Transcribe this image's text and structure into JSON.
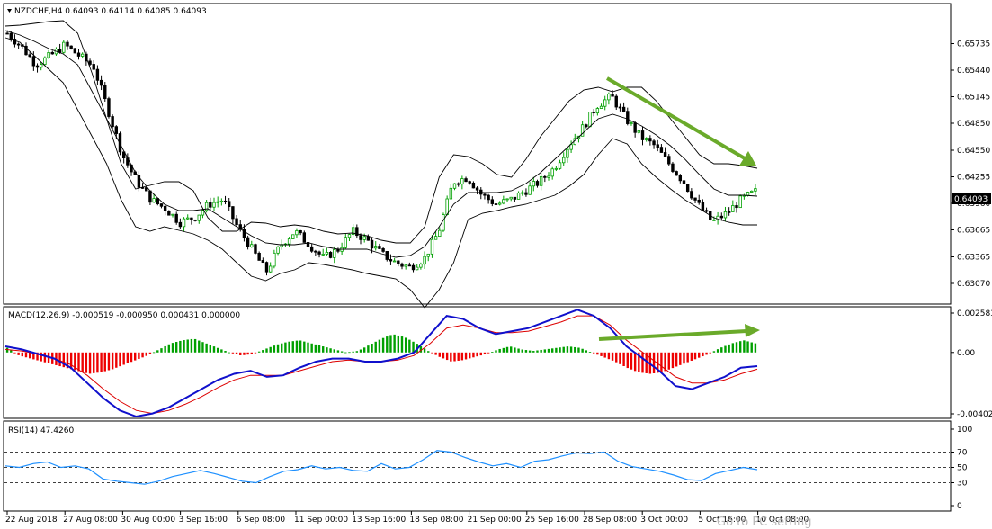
{
  "chart_data": [
    {
      "panel": "price",
      "type": "candlestick",
      "title": "NZDCHF,H4  0.64093 0.64114 0.64085 0.64093",
      "last_price_label": "0.64093",
      "ylim": [
        0.63,
        0.66
      ],
      "y_ticks": [
        "0.65735",
        "0.65440",
        "0.65145",
        "0.64850",
        "0.64550",
        "0.64255",
        "0.63960",
        "0.63665",
        "0.63365",
        "0.63070"
      ],
      "x_ticks": [
        "22 Aug 2018",
        "27 Aug 08:00",
        "30 Aug 00:00",
        "3 Sep 16:00",
        "6 Sep 08:00",
        "11 Sep 00:00",
        "13 Sep 16:00",
        "18 Sep 08:00",
        "21 Sep 00:00",
        "25 Sep 16:00",
        "28 Sep 08:00",
        "3 Oct 00:00",
        "5 Oct 16:00",
        "10 Oct 08:00"
      ],
      "close_path": [
        0.6585,
        0.657,
        0.655,
        0.656,
        0.6572,
        0.656,
        0.6548,
        0.65,
        0.645,
        0.642,
        0.64,
        0.639,
        0.6375,
        0.638,
        0.6395,
        0.64,
        0.637,
        0.6345,
        0.632,
        0.635,
        0.6365,
        0.635,
        0.6335,
        0.6345,
        0.6365,
        0.6355,
        0.634,
        0.633,
        0.6325,
        0.6335,
        0.6365,
        0.642,
        0.6425,
        0.6405,
        0.6395,
        0.64,
        0.641,
        0.642,
        0.6435,
        0.646,
        0.648,
        0.6505,
        0.6515,
        0.649,
        0.647,
        0.646,
        0.644,
        0.642,
        0.6395,
        0.6375,
        0.6385,
        0.64,
        0.6409
      ],
      "bb_upper": [
        0.6593,
        0.6594,
        0.6596,
        0.6598,
        0.6599,
        0.6585,
        0.654,
        0.649,
        0.644,
        0.6412,
        0.6416,
        0.642,
        0.642,
        0.641,
        0.638,
        0.6365,
        0.6365,
        0.6375,
        0.6374,
        0.637,
        0.6372,
        0.637,
        0.6365,
        0.6362,
        0.6363,
        0.636,
        0.6355,
        0.6352,
        0.6352,
        0.637,
        0.6425,
        0.645,
        0.6448,
        0.644,
        0.6428,
        0.6425,
        0.6445,
        0.647,
        0.649,
        0.651,
        0.6522,
        0.6525,
        0.652,
        0.6525,
        0.6525,
        0.651,
        0.649,
        0.647,
        0.645,
        0.644,
        0.644,
        0.6438,
        0.6435
      ],
      "bb_middle": [
        0.6588,
        0.6583,
        0.6576,
        0.6568,
        0.6562,
        0.655,
        0.652,
        0.649,
        0.646,
        0.643,
        0.641,
        0.6395,
        0.6388,
        0.6388,
        0.639,
        0.638,
        0.637,
        0.636,
        0.6352,
        0.635,
        0.635,
        0.6352,
        0.6348,
        0.6345,
        0.6345,
        0.6345,
        0.634,
        0.6336,
        0.6338,
        0.6348,
        0.637,
        0.6395,
        0.6408,
        0.6408,
        0.6408,
        0.641,
        0.6418,
        0.643,
        0.6445,
        0.646,
        0.6475,
        0.649,
        0.6495,
        0.649,
        0.6482,
        0.6472,
        0.646,
        0.6445,
        0.6428,
        0.6412,
        0.6405,
        0.6405,
        0.6404
      ],
      "bb_lower": [
        0.658,
        0.6575,
        0.656,
        0.6545,
        0.653,
        0.65,
        0.647,
        0.644,
        0.64,
        0.637,
        0.6365,
        0.637,
        0.6366,
        0.6362,
        0.6355,
        0.6345,
        0.633,
        0.6315,
        0.631,
        0.6318,
        0.6322,
        0.633,
        0.6328,
        0.6325,
        0.6322,
        0.6318,
        0.6315,
        0.6312,
        0.63,
        0.628,
        0.63,
        0.633,
        0.6378,
        0.6385,
        0.6388,
        0.6392,
        0.6395,
        0.64,
        0.6405,
        0.6415,
        0.6428,
        0.645,
        0.6468,
        0.6462,
        0.644,
        0.6425,
        0.6412,
        0.64,
        0.639,
        0.638,
        0.6375,
        0.6372,
        0.6372
      ],
      "annotation": "green arrow: downtrend of highs from 28 Sep to 10 Oct"
    },
    {
      "panel": "macd",
      "type": "histogram+lines",
      "title": "MACD(12,26,9) -0.000519 -0.000950 0.000431 0.000000",
      "ylim": [
        -0.004024,
        0.002583
      ],
      "y_ticks": [
        "0.002583",
        "0.00",
        "-0.004024"
      ],
      "histogram": [
        0.0003,
        -0.0002,
        -0.0004,
        -0.0006,
        -0.0008,
        -0.001,
        -0.0012,
        -0.0014,
        -0.0013,
        -0.0011,
        -0.0008,
        -0.0005,
        -0.0002,
        0.0002,
        0.0006,
        0.0008,
        0.0009,
        0.0006,
        0.0003,
        0.0,
        -0.0002,
        -0.0001,
        0.0002,
        0.0005,
        0.0007,
        0.0008,
        0.0006,
        0.0004,
        0.0002,
        0.0,
        0.0001,
        0.0005,
        0.0009,
        0.0012,
        0.001,
        0.0006,
        0.0001,
        -0.0003,
        -0.0006,
        -0.0005,
        -0.0003,
        -0.0001,
        0.0002,
        0.0004,
        0.0002,
        0.0001,
        0.0002,
        0.0003,
        0.0004,
        0.0003,
        0.0,
        -0.0003,
        -0.0006,
        -0.001,
        -0.0013,
        -0.0014,
        -0.0013,
        -0.001,
        -0.0007,
        -0.0004,
        -0.0001,
        0.0003,
        0.0006,
        0.0008,
        0.0006
      ],
      "macd_line": [
        0.0004,
        0.0002,
        -0.0001,
        -0.0004,
        -0.001,
        -0.002,
        -0.003,
        -0.0038,
        -0.0042,
        -0.004,
        -0.0036,
        -0.003,
        -0.0024,
        -0.0018,
        -0.0014,
        -0.0012,
        -0.0016,
        -0.0015,
        -0.001,
        -0.0006,
        -0.0004,
        -0.0004,
        -0.0006,
        -0.0006,
        -0.0004,
        0.0,
        0.0012,
        0.0024,
        0.0022,
        0.0016,
        0.0012,
        0.0014,
        0.0016,
        0.002,
        0.0024,
        0.0028,
        0.0024,
        0.0016,
        0.0004,
        -0.0004,
        -0.0012,
        -0.0022,
        -0.0024,
        -0.002,
        -0.0016,
        -0.001,
        -0.0009
      ],
      "signal_line": [
        0.0002,
        0.0001,
        -0.0001,
        -0.0004,
        -0.0008,
        -0.0015,
        -0.0024,
        -0.0032,
        -0.0038,
        -0.004,
        -0.0038,
        -0.0034,
        -0.0029,
        -0.0023,
        -0.0018,
        -0.0015,
        -0.0015,
        -0.0015,
        -0.0012,
        -0.0009,
        -0.0006,
        -0.0005,
        -0.0006,
        -0.0006,
        -0.0005,
        -0.0002,
        0.0006,
        0.0016,
        0.0018,
        0.0016,
        0.0013,
        0.0013,
        0.0014,
        0.0017,
        0.002,
        0.0024,
        0.0024,
        0.0018,
        0.0008,
        0.0,
        -0.0008,
        -0.0016,
        -0.002,
        -0.002,
        -0.0018,
        -0.0014,
        -0.0011
      ],
      "annotation": "green arrow: rising MACD histogram lows (divergence)"
    },
    {
      "panel": "rsi",
      "type": "line",
      "title": "RSI(14) 47.4260",
      "ylim": [
        0,
        100
      ],
      "y_ticks": [
        "100",
        "70",
        "50",
        "30",
        "0"
      ],
      "levels": [
        70,
        50,
        30
      ],
      "values": [
        52,
        50,
        55,
        57,
        50,
        52,
        48,
        35,
        32,
        30,
        28,
        32,
        38,
        42,
        46,
        42,
        37,
        32,
        30,
        38,
        45,
        47,
        52,
        48,
        50,
        46,
        45,
        55,
        48,
        50,
        60,
        72,
        70,
        63,
        57,
        52,
        55,
        50,
        58,
        60,
        65,
        69,
        68,
        70,
        58,
        51,
        48,
        45,
        40,
        34,
        33,
        42,
        46,
        50,
        47
      ]
    }
  ],
  "watermark": "Go to PC setting",
  "colors": {
    "bull_candle": "#00a000",
    "bear_candle": "#000000",
    "macd_main": "#1010cc",
    "macd_signal": "#dd0000",
    "hist_pos": "#00a000",
    "hist_neg": "#ee0000",
    "rsi_line": "#1e90ff",
    "arrow": "#6aaa2a"
  }
}
